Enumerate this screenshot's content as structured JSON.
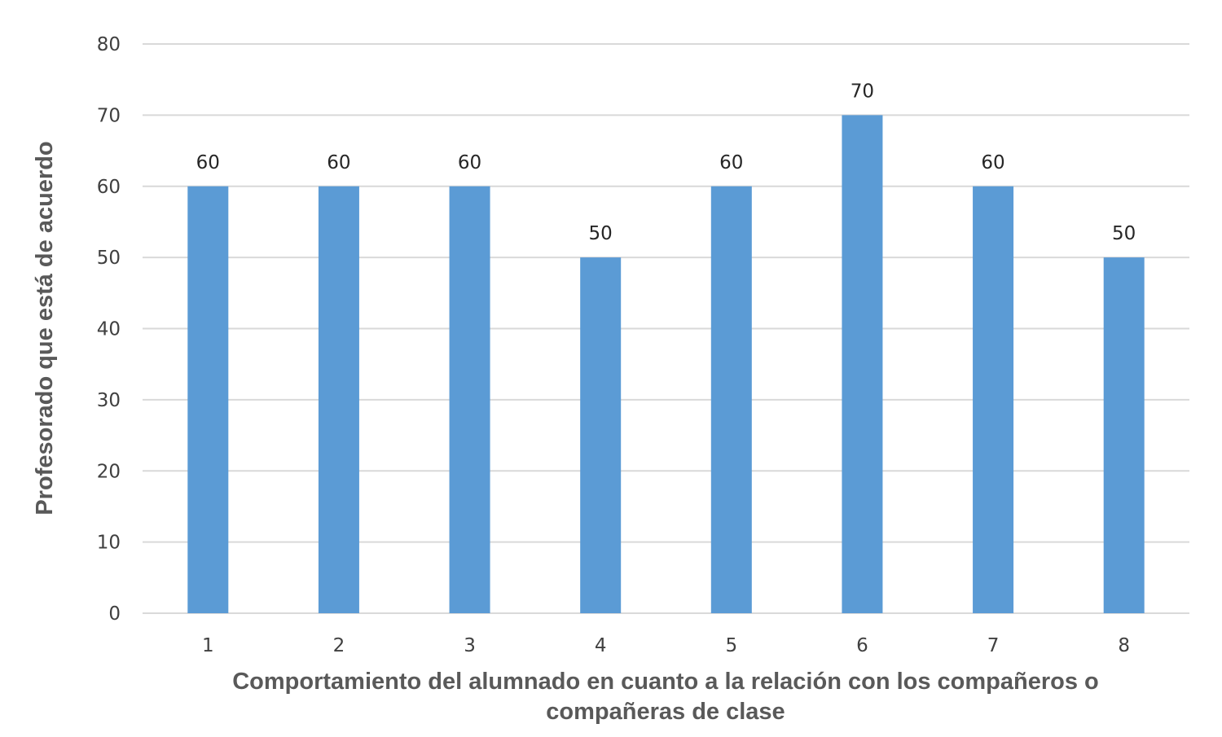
{
  "chart_data": {
    "type": "bar",
    "title": "",
    "categories": [
      "1",
      "2",
      "3",
      "4",
      "5",
      "6",
      "7",
      "8"
    ],
    "values": [
      60,
      60,
      60,
      50,
      60,
      70,
      60,
      50
    ],
    "data_labels": [
      "60",
      "60",
      "60",
      "50",
      "60",
      "70",
      "60",
      "50"
    ],
    "xlabel_lines": [
      "Comportamiento del alumnado en cuanto a la relación con los compañeros o",
      "compañeras de clase"
    ],
    "xlabel": "Comportamiento del alumnado en cuanto a la relación con los compañeros o compañeras de clase",
    "ylabel": "Profesorado que está de acuerdo",
    "ylim": [
      0,
      80
    ],
    "yticks": [
      0,
      10,
      20,
      30,
      40,
      50,
      60,
      70,
      80
    ],
    "grid": true,
    "legend": null,
    "colors": {
      "bar": "#5b9bd5",
      "grid": "#d9d9d9",
      "tick_text": "#404040",
      "axis_title": "#595959"
    }
  }
}
